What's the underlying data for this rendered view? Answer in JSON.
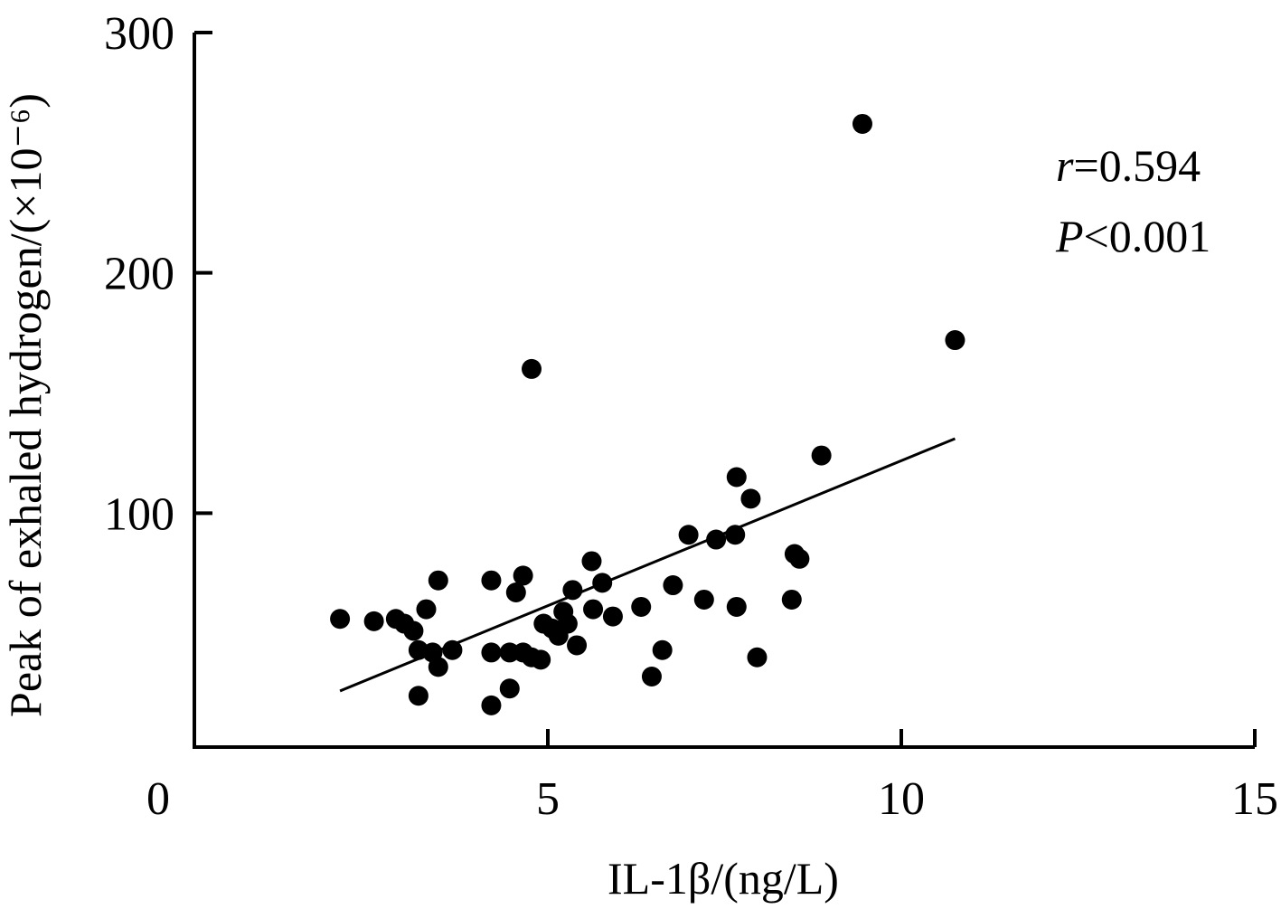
{
  "chart_data": {
    "type": "scatter",
    "title": "",
    "xlabel": "IL-1β/(ng/L)",
    "ylabel": "Peak of exhaled hydrogen/(×10⁻⁶)",
    "xlim": [
      0,
      15
    ],
    "ylim": [
      0,
      300
    ],
    "xticks": [
      "0",
      "5",
      "10",
      "15"
    ],
    "yticks": [
      "100",
      "200",
      "300"
    ],
    "xtick_values": [
      0,
      5,
      10,
      15
    ],
    "ytick_values": [
      100,
      200,
      300
    ],
    "annotation_r_label": "r",
    "annotation_r_value": "=0.594",
    "annotation_p_label": "P",
    "annotation_p_value": "<0.001",
    "grid": false,
    "marker_color": "#000000",
    "points": [
      [
        2.06,
        56
      ],
      [
        2.54,
        55
      ],
      [
        2.85,
        56
      ],
      [
        2.97,
        54
      ],
      [
        3.1,
        51
      ],
      [
        3.17,
        43
      ],
      [
        3.17,
        24
      ],
      [
        3.45,
        72
      ],
      [
        3.28,
        60
      ],
      [
        3.37,
        42
      ],
      [
        3.45,
        36
      ],
      [
        3.65,
        43
      ],
      [
        4.2,
        72
      ],
      [
        4.2,
        42
      ],
      [
        4.2,
        20
      ],
      [
        4.46,
        42
      ],
      [
        4.46,
        27
      ],
      [
        4.55,
        67
      ],
      [
        4.65,
        74
      ],
      [
        4.65,
        42
      ],
      [
        4.77,
        160
      ],
      [
        4.77,
        40
      ],
      [
        4.9,
        39
      ],
      [
        4.94,
        54
      ],
      [
        5.06,
        52
      ],
      [
        5.15,
        49
      ],
      [
        5.22,
        59
      ],
      [
        5.28,
        54
      ],
      [
        5.35,
        68
      ],
      [
        5.41,
        45
      ],
      [
        5.62,
        80
      ],
      [
        5.64,
        60
      ],
      [
        5.77,
        71
      ],
      [
        5.92,
        57
      ],
      [
        6.32,
        61
      ],
      [
        6.47,
        32
      ],
      [
        6.62,
        43
      ],
      [
        6.77,
        70
      ],
      [
        6.99,
        91
      ],
      [
        7.21,
        64
      ],
      [
        7.38,
        89
      ],
      [
        7.65,
        91
      ],
      [
        7.67,
        115
      ],
      [
        7.67,
        61
      ],
      [
        7.87,
        106
      ],
      [
        7.96,
        40
      ],
      [
        8.45,
        64
      ],
      [
        8.49,
        83
      ],
      [
        8.56,
        81
      ],
      [
        8.87,
        124
      ],
      [
        9.45,
        262
      ],
      [
        10.76,
        172
      ]
    ],
    "fit_line": {
      "x": [
        2.06,
        10.76
      ],
      "y": [
        26,
        131
      ]
    }
  }
}
